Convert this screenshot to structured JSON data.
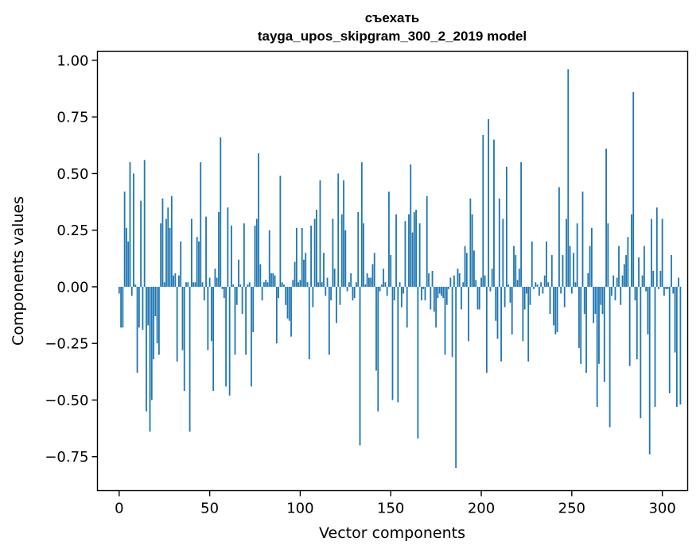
{
  "chart_data": {
    "type": "bar",
    "title": "съехать",
    "subtitle": "tayga_upos_skipgram_300_2_2019 model",
    "xlabel": "Vector components",
    "ylabel": "Components values",
    "xlim": [
      -12,
      314
    ],
    "ylim": [
      -0.9,
      1.04
    ],
    "x_ticks": [
      0,
      50,
      100,
      150,
      200,
      250,
      300
    ],
    "x_tick_labels": [
      "0",
      "50",
      "100",
      "150",
      "200",
      "250",
      "300"
    ],
    "y_ticks": [
      -0.75,
      -0.5,
      -0.25,
      0.0,
      0.25,
      0.5,
      0.75,
      1.0
    ],
    "y_tick_labels": [
      "−0.75",
      "−0.50",
      "−0.25",
      "0.00",
      "0.25",
      "0.50",
      "0.75",
      "1.00"
    ],
    "grid": false,
    "bar_color": "#1f77b4",
    "values": [
      -0.03,
      -0.18,
      -0.18,
      0.42,
      0.26,
      0.2,
      0.55,
      -0.04,
      0.5,
      0.01,
      -0.38,
      -0.18,
      0.38,
      -0.19,
      0.56,
      -0.55,
      -0.17,
      -0.64,
      -0.5,
      -0.32,
      -0.13,
      -0.25,
      -0.3,
      0.28,
      0.39,
      0.02,
      0.3,
      0.35,
      0.26,
      0.4,
      0.05,
      0.06,
      -0.33,
      0.05,
      0.2,
      -0.28,
      -0.46,
      0.02,
      0.02,
      -0.64,
      0.3,
      0.02,
      0.02,
      0.22,
      0.2,
      0.55,
      0.02,
      -0.06,
      0.31,
      -0.28,
      0.04,
      -0.24,
      -0.46,
      0.08,
      0.04,
      0.33,
      0.66,
      -0.01,
      -0.05,
      -0.44,
      0.35,
      -0.48,
      0.27,
      0.01,
      -0.3,
      -0.08,
      0.12,
      0.01,
      -0.12,
      0.28,
      -0.3,
      0.01,
      0.02,
      -0.44,
      -0.2,
      0.27,
      0.3,
      0.59,
      0.1,
      -0.06,
      0.02,
      0.03,
      0.02,
      0.25,
      0.06,
      0.06,
      0.05,
      -0.25,
      -0.05,
      0.49,
      0.02,
      0.01,
      -0.08,
      -0.14,
      -0.15,
      -0.22,
      0.03,
      0.11,
      0.26,
      0.02,
      0.03,
      0.26,
      0.12,
      0.15,
      0.02,
      -0.32,
      0.27,
      -0.09,
      0.3,
      0.34,
      0.02,
      0.47,
      0.02,
      0.15,
      -0.04,
      0.04,
      -0.3,
      -0.06,
      0.3,
      0.08,
      -0.16,
      0.5,
      -0.08,
      0.32,
      0.47,
      0.25,
      -0.02,
      0.02,
      0.06,
      -0.06,
      -0.05,
      0.02,
      0.33,
      -0.7,
      0.55,
      0.28,
      0.01,
      0.06,
      0.04,
      0.04,
      0.1,
      0.15,
      -0.37,
      -0.55,
      -0.02,
      0.01,
      0.08,
      0.02,
      -0.04,
      0.42,
      0.14,
      -0.5,
      -0.06,
      0.32,
      -0.51,
      0.02,
      -0.09,
      -0.03,
      0.29,
      -0.18,
      0.32,
      0.54,
      0.24,
      0.33,
      0.34,
      -0.67,
      0.28,
      -0.06,
      -0.01,
      -0.06,
      0.4,
      0.06,
      -0.1,
      0.07,
      -0.11,
      -0.18,
      -0.05,
      -0.03,
      -0.04,
      -0.05,
      -0.3,
      -0.08,
      -0.01,
      0.04,
      -0.31,
      0.05,
      -0.8,
      0.08,
      0.06,
      -0.1,
      0.02,
      0.18,
      0.15,
      -0.24,
      0.39,
      0.32,
      0.16,
      0.03,
      -0.1,
      -0.1,
      0.04,
      0.67,
      0.05,
      -0.38,
      0.74,
      -0.02,
      0.08,
      0.65,
      -0.15,
      -0.23,
      0.39,
      -0.33,
      0.3,
      -0.09,
      0.53,
      0.01,
      -0.07,
      -0.21,
      0.18,
      0.14,
      0.03,
      0.08,
      0.55,
      -0.24,
      -0.1,
      -0.03,
      -0.33,
      -0.08,
      0.2,
      -0.01,
      0.02,
      0.01,
      -0.04,
      0.02,
      -0.03,
      0.05,
      0.2,
      0.02,
      -0.12,
      0.14,
      -0.17,
      -0.21,
      -0.2,
      0.44,
      -0.03,
      0.14,
      -0.09,
      0.3,
      0.96,
      0.18,
      -0.03,
      0.15,
      0.02,
      0.28,
      -0.27,
      -0.34,
      0.42,
      -0.12,
      -0.38,
      0.06,
      0.18,
      0.26,
      -0.16,
      -0.12,
      -0.53,
      -0.34,
      -0.08,
      -0.12,
      -0.42,
      0.61,
      0.28,
      -0.62,
      -0.04,
      0.05,
      -0.06,
      0.04,
      0.18,
      -0.08,
      0.05,
      0.1,
      0.14,
      0.22,
      -0.35,
      0.32,
      0.86,
      -0.06,
      -0.32,
      0.13,
      -0.58,
      0.05,
      0.18,
      -0.02,
      -0.21,
      -0.74,
      0.3,
      0.07,
      -0.53,
      0.35,
      -0.01,
      0.07,
      0.3,
      -0.04,
      -0.01,
      -0.01,
      -0.47,
      0.14,
      -0.03,
      -0.29,
      -0.53,
      0.04,
      -0.52
    ]
  }
}
